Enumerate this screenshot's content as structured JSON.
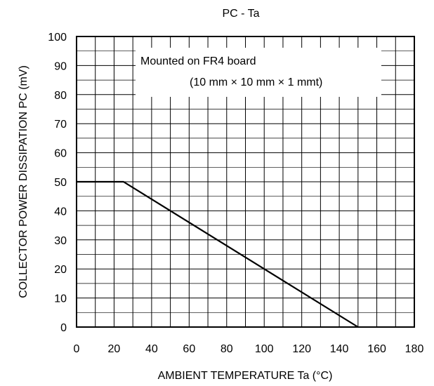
{
  "chart_data": {
    "type": "line",
    "title": "PC - Ta",
    "xlabel": "AMBIENT TEMPERATURE  Ta (°C)",
    "ylabel": "COLLECTOR POWER DISSIPATION   PC  (mV)",
    "xlim": [
      0,
      180
    ],
    "ylim": [
      0,
      100
    ],
    "xticks": [
      0,
      20,
      40,
      60,
      80,
      100,
      120,
      140,
      160,
      180
    ],
    "yticks": [
      0,
      10,
      20,
      30,
      40,
      50,
      60,
      70,
      80,
      90,
      100
    ],
    "x_minor_step": 10,
    "y_minor_step": 5,
    "grid": true,
    "annotation": {
      "line1": "Mounted on FR4 board",
      "line2": "(10 mm  × 10 mm × 1 mmt)"
    },
    "series": [
      {
        "x": [
          0,
          25,
          150
        ],
        "y": [
          50,
          50,
          0
        ]
      }
    ]
  }
}
